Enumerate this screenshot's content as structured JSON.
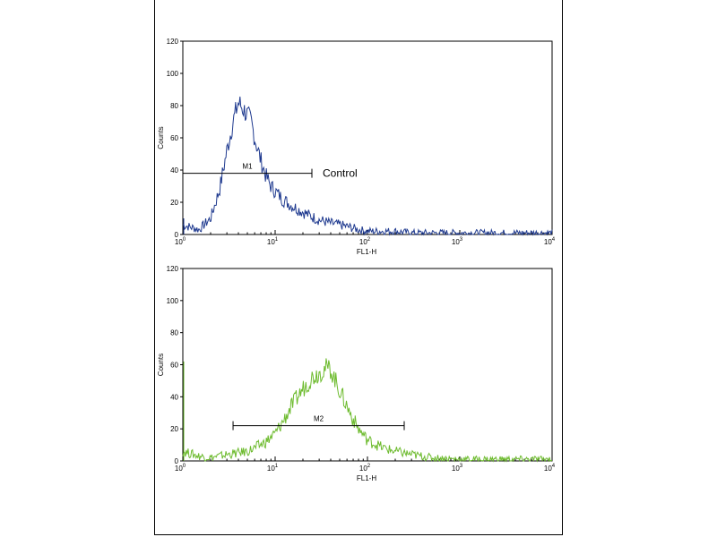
{
  "chart_data": [
    {
      "type": "line",
      "xlabel": "FL1-H",
      "ylabel": "Counts",
      "x_scale": "log",
      "xlim": [
        1,
        10000
      ],
      "ylim": [
        0,
        120
      ],
      "yticks": [
        0,
        20,
        40,
        60,
        80,
        100,
        120
      ],
      "xticks": [
        {
          "value": 1,
          "base": "10",
          "exp": "0"
        },
        {
          "value": 10,
          "base": "10",
          "exp": "1"
        },
        {
          "value": 100,
          "base": "10",
          "exp": "2"
        },
        {
          "value": 1000,
          "base": "10",
          "exp": "3"
        },
        {
          "value": 10000,
          "base": "10",
          "exp": "4"
        }
      ],
      "color": "#1f3a8f",
      "annotation": "Control",
      "marker": {
        "label": "M1",
        "from": 1,
        "to": 25,
        "y": 38
      },
      "series": {
        "x": [
          1.0,
          1.5,
          2.0,
          2.5,
          3.0,
          3.5,
          4.0,
          4.5,
          5.0,
          5.5,
          6.0,
          7.0,
          8.0,
          9.0,
          10,
          12,
          15,
          20,
          25,
          30,
          40,
          50,
          60,
          80,
          100,
          150,
          200,
          300,
          500,
          1000,
          2000,
          5000,
          10000
        ],
        "y": [
          6,
          3,
          10,
          28,
          52,
          70,
          82,
          78,
          74,
          70,
          60,
          46,
          36,
          30,
          27,
          22,
          18,
          14,
          11,
          9,
          7,
          6,
          5,
          3,
          2,
          2,
          2,
          1,
          1,
          1,
          1,
          1,
          1
        ]
      }
    },
    {
      "type": "line",
      "xlabel": "FL1-H",
      "ylabel": "Counts",
      "x_scale": "log",
      "xlim": [
        1,
        10000
      ],
      "ylim": [
        0,
        120
      ],
      "yticks": [
        0,
        20,
        40,
        60,
        80,
        100,
        120
      ],
      "xticks": [
        {
          "value": 1,
          "base": "10",
          "exp": "0"
        },
        {
          "value": 10,
          "base": "10",
          "exp": "1"
        },
        {
          "value": 100,
          "base": "10",
          "exp": "2"
        },
        {
          "value": 1000,
          "base": "10",
          "exp": "3"
        },
        {
          "value": 10000,
          "base": "10",
          "exp": "4"
        }
      ],
      "color": "#6dbb2e",
      "marker": {
        "label": "M2",
        "from": 3.5,
        "to": 250,
        "y": 22
      },
      "series": {
        "x": [
          1.0,
          1.5,
          2.0,
          3.0,
          4.0,
          5.0,
          6.0,
          8.0,
          10,
          12,
          15,
          20,
          25,
          30,
          35,
          40,
          45,
          50,
          60,
          70,
          80,
          100,
          150,
          200,
          300,
          500,
          1000,
          2000,
          5000,
          10000
        ],
        "y": [
          6,
          3,
          2,
          4,
          5,
          6,
          8,
          12,
          17,
          24,
          34,
          45,
          52,
          55,
          58,
          57,
          50,
          44,
          34,
          26,
          20,
          13,
          8,
          6,
          4,
          2,
          1,
          1,
          1,
          1
        ]
      }
    }
  ]
}
